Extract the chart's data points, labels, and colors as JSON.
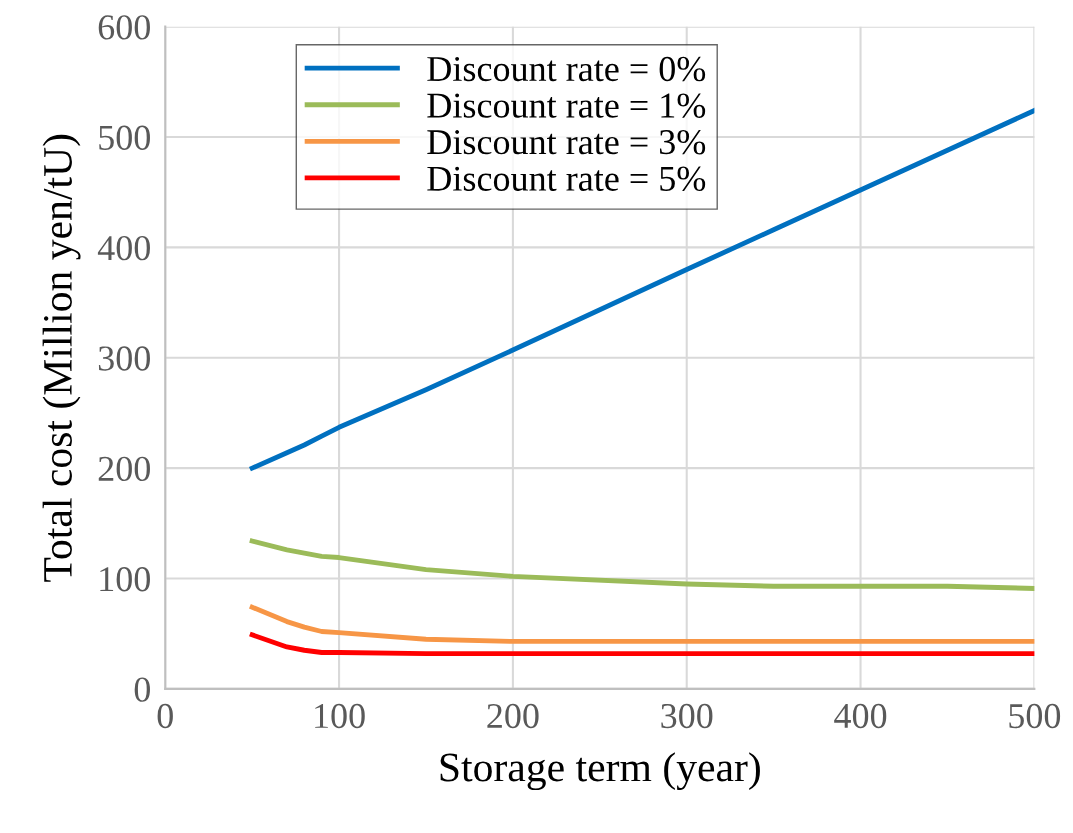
{
  "chart_data": {
    "type": "line",
    "xlabel": "Storage term (year)",
    "ylabel": "Total cost (Million yen/tU)",
    "x": [
      50,
      70,
      80,
      90,
      100,
      150,
      200,
      300,
      350,
      400,
      450,
      500
    ],
    "series": [
      {
        "name": "Discount rate = 0%",
        "color": "#0070c0",
        "values": [
          200,
          214,
          221,
          229,
          237,
          271,
          307,
          380,
          416,
          452,
          488,
          524
        ]
      },
      {
        "name": "Discount rate = 1%",
        "color": "#9bbb59",
        "values": [
          134,
          126,
          123,
          120,
          119,
          108,
          102,
          95,
          93,
          93,
          93,
          91
        ]
      },
      {
        "name": "Discount rate = 3%",
        "color": "#f79646",
        "values": [
          74,
          61,
          56,
          52,
          51,
          45,
          43,
          43,
          43,
          43,
          43,
          43
        ]
      },
      {
        "name": "Discount rate = 5%",
        "color": "#ff0000",
        "values": [
          49,
          38,
          35,
          33,
          33,
          32,
          32,
          32,
          32,
          32,
          32,
          32
        ]
      }
    ],
    "xlim": [
      0,
      500
    ],
    "ylim": [
      0,
      600
    ],
    "xticks": [
      0,
      100,
      200,
      300,
      400,
      500
    ],
    "yticks": [
      0,
      100,
      200,
      300,
      400,
      500,
      600
    ],
    "grid": true,
    "legend": "top left",
    "marker": "none",
    "line_style": "solid"
  }
}
